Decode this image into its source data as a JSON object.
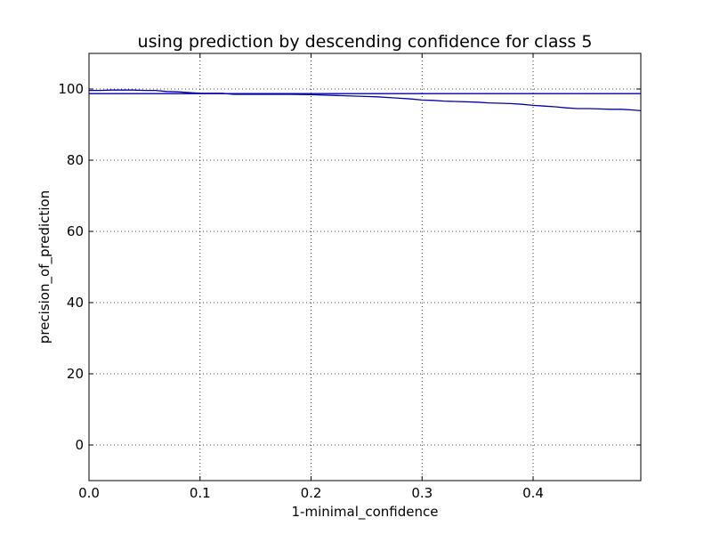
{
  "chart_data": {
    "type": "line",
    "title": "using prediction by descending confidence for class 5",
    "xlabel": "1-minimal_confidence",
    "ylabel": "precision_of_prediction",
    "xlim": [
      0.0,
      0.497
    ],
    "ylim": [
      -10,
      110
    ],
    "x_ticks": [
      0.0,
      0.1,
      0.2,
      0.3,
      0.4
    ],
    "x_tick_labels": [
      "0.0",
      "0.1",
      "0.2",
      "0.3",
      "0.4"
    ],
    "y_ticks": [
      0,
      20,
      40,
      60,
      80,
      100
    ],
    "y_tick_labels": [
      "0",
      "20",
      "40",
      "60",
      "80",
      "100"
    ],
    "grid": true,
    "color": "#0000aa",
    "series": [
      {
        "x": [
          0.0,
          0.01,
          0.02,
          0.03,
          0.04,
          0.05,
          0.06,
          0.07,
          0.08,
          0.09,
          0.1,
          0.12,
          0.13,
          0.15,
          0.18,
          0.2,
          0.22,
          0.24,
          0.25,
          0.26,
          0.27,
          0.28,
          0.29,
          0.3,
          0.31,
          0.32,
          0.33,
          0.35,
          0.36,
          0.37,
          0.38,
          0.39,
          0.4,
          0.41,
          0.42,
          0.43,
          0.44,
          0.45,
          0.46,
          0.47,
          0.48,
          0.49,
          0.497
        ],
        "values": [
          99.6,
          99.6,
          99.7,
          99.7,
          99.7,
          99.6,
          99.6,
          99.3,
          99.2,
          99.0,
          98.8,
          98.8,
          98.5,
          98.5,
          98.5,
          98.4,
          98.2,
          98.0,
          97.9,
          97.8,
          97.6,
          97.4,
          97.2,
          96.9,
          96.8,
          96.6,
          96.5,
          96.3,
          96.1,
          96.0,
          95.9,
          95.7,
          95.4,
          95.2,
          95.0,
          94.7,
          94.5,
          94.5,
          94.4,
          94.3,
          94.3,
          94.1,
          93.9
        ]
      },
      {
        "x": [
          0.0,
          0.497
        ],
        "values": [
          98.7,
          98.7
        ]
      }
    ]
  }
}
